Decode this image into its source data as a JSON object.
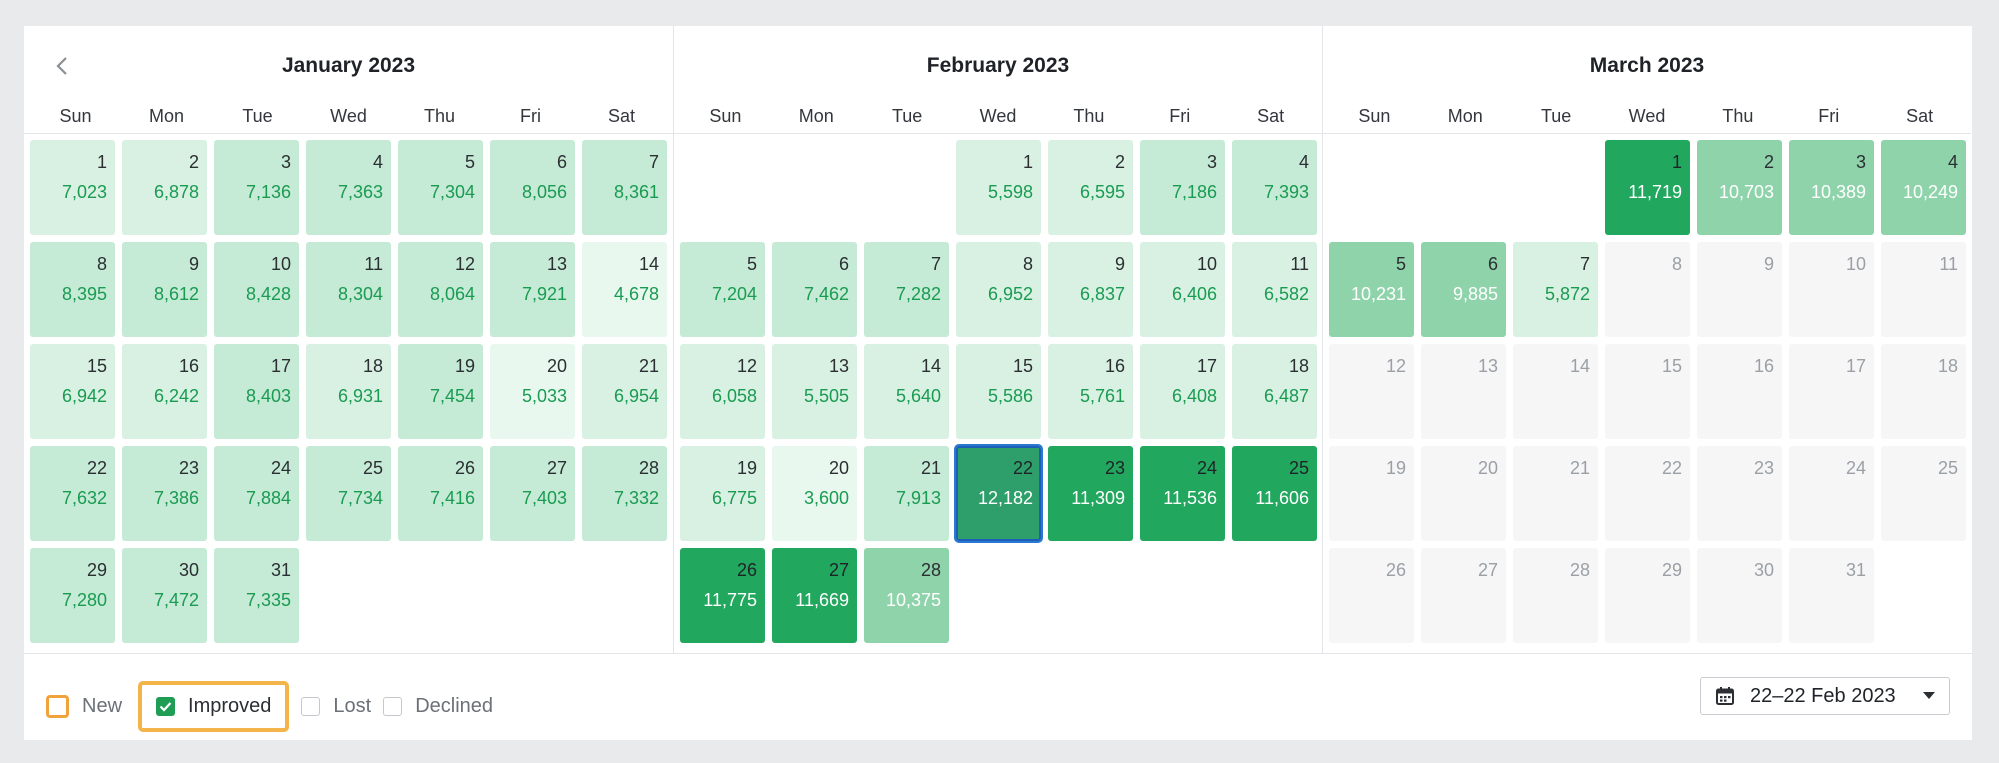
{
  "weekdays": [
    "Sun",
    "Mon",
    "Tue",
    "Wed",
    "Thu",
    "Fri",
    "Sat"
  ],
  "months": [
    {
      "title": "January 2023",
      "cells": [
        {
          "d": "1",
          "v": "7,023",
          "l": 2
        },
        {
          "d": "2",
          "v": "6,878",
          "l": 2
        },
        {
          "d": "3",
          "v": "7,136",
          "l": 3
        },
        {
          "d": "4",
          "v": "7,363",
          "l": 3
        },
        {
          "d": "5",
          "v": "7,304",
          "l": 3
        },
        {
          "d": "6",
          "v": "8,056",
          "l": 3
        },
        {
          "d": "7",
          "v": "8,361",
          "l": 3
        },
        {
          "d": "8",
          "v": "8,395",
          "l": 3
        },
        {
          "d": "9",
          "v": "8,612",
          "l": 3
        },
        {
          "d": "10",
          "v": "8,428",
          "l": 3
        },
        {
          "d": "11",
          "v": "8,304",
          "l": 3
        },
        {
          "d": "12",
          "v": "8,064",
          "l": 3
        },
        {
          "d": "13",
          "v": "7,921",
          "l": 3
        },
        {
          "d": "14",
          "v": "4,678",
          "l": 1
        },
        {
          "d": "15",
          "v": "6,942",
          "l": 2
        },
        {
          "d": "16",
          "v": "6,242",
          "l": 2
        },
        {
          "d": "17",
          "v": "8,403",
          "l": 3
        },
        {
          "d": "18",
          "v": "6,931",
          "l": 2
        },
        {
          "d": "19",
          "v": "7,454",
          "l": 3
        },
        {
          "d": "20",
          "v": "5,033",
          "l": 1
        },
        {
          "d": "21",
          "v": "6,954",
          "l": 2
        },
        {
          "d": "22",
          "v": "7,632",
          "l": 3
        },
        {
          "d": "23",
          "v": "7,386",
          "l": 3
        },
        {
          "d": "24",
          "v": "7,884",
          "l": 3
        },
        {
          "d": "25",
          "v": "7,734",
          "l": 3
        },
        {
          "d": "26",
          "v": "7,416",
          "l": 3
        },
        {
          "d": "27",
          "v": "7,403",
          "l": 3
        },
        {
          "d": "28",
          "v": "7,332",
          "l": 3
        },
        {
          "d": "29",
          "v": "7,280",
          "l": 3
        },
        {
          "d": "30",
          "v": "7,472",
          "l": 3
        },
        {
          "d": "31",
          "v": "7,335",
          "l": 3
        },
        {
          "d": "",
          "v": "",
          "l": -1
        },
        {
          "d": "",
          "v": "",
          "l": -1
        },
        {
          "d": "",
          "v": "",
          "l": -1
        },
        {
          "d": "",
          "v": "",
          "l": -1
        }
      ]
    },
    {
      "title": "February 2023",
      "cells": [
        {
          "d": "",
          "v": "",
          "l": -1
        },
        {
          "d": "",
          "v": "",
          "l": -1
        },
        {
          "d": "",
          "v": "",
          "l": -1
        },
        {
          "d": "1",
          "v": "5,598",
          "l": 2
        },
        {
          "d": "2",
          "v": "6,595",
          "l": 2
        },
        {
          "d": "3",
          "v": "7,186",
          "l": 3
        },
        {
          "d": "4",
          "v": "7,393",
          "l": 3
        },
        {
          "d": "5",
          "v": "7,204",
          "l": 3
        },
        {
          "d": "6",
          "v": "7,462",
          "l": 3
        },
        {
          "d": "7",
          "v": "7,282",
          "l": 3
        },
        {
          "d": "8",
          "v": "6,952",
          "l": 2
        },
        {
          "d": "9",
          "v": "6,837",
          "l": 2
        },
        {
          "d": "10",
          "v": "6,406",
          "l": 2
        },
        {
          "d": "11",
          "v": "6,582",
          "l": 2
        },
        {
          "d": "12",
          "v": "6,058",
          "l": 2
        },
        {
          "d": "13",
          "v": "5,505",
          "l": 2
        },
        {
          "d": "14",
          "v": "5,640",
          "l": 2
        },
        {
          "d": "15",
          "v": "5,586",
          "l": 2
        },
        {
          "d": "16",
          "v": "5,761",
          "l": 2
        },
        {
          "d": "17",
          "v": "6,408",
          "l": 2
        },
        {
          "d": "18",
          "v": "6,487",
          "l": 2
        },
        {
          "d": "19",
          "v": "6,775",
          "l": 2
        },
        {
          "d": "20",
          "v": "3,600",
          "l": 1
        },
        {
          "d": "21",
          "v": "7,913",
          "l": 3
        },
        {
          "d": "22",
          "v": "12,182",
          "l": 5,
          "sel": true
        },
        {
          "d": "23",
          "v": "11,309",
          "l": 5
        },
        {
          "d": "24",
          "v": "11,536",
          "l": 5
        },
        {
          "d": "25",
          "v": "11,606",
          "l": 5
        },
        {
          "d": "26",
          "v": "11,775",
          "l": 5
        },
        {
          "d": "27",
          "v": "11,669",
          "l": 5
        },
        {
          "d": "28",
          "v": "10,375",
          "l": 4
        },
        {
          "d": "",
          "v": "",
          "l": -1
        },
        {
          "d": "",
          "v": "",
          "l": -1
        },
        {
          "d": "",
          "v": "",
          "l": -1
        },
        {
          "d": "",
          "v": "",
          "l": -1
        }
      ]
    },
    {
      "title": "March 2023",
      "cells": [
        {
          "d": "",
          "v": "",
          "l": -1
        },
        {
          "d": "",
          "v": "",
          "l": -1
        },
        {
          "d": "",
          "v": "",
          "l": -1
        },
        {
          "d": "1",
          "v": "11,719",
          "l": 5
        },
        {
          "d": "2",
          "v": "10,703",
          "l": 4
        },
        {
          "d": "3",
          "v": "10,389",
          "l": 4
        },
        {
          "d": "4",
          "v": "10,249",
          "l": 4
        },
        {
          "d": "5",
          "v": "10,231",
          "l": 4
        },
        {
          "d": "6",
          "v": "9,885",
          "l": 4
        },
        {
          "d": "7",
          "v": "5,872",
          "l": 2
        },
        {
          "d": "8",
          "v": "",
          "l": 0
        },
        {
          "d": "9",
          "v": "",
          "l": 0
        },
        {
          "d": "10",
          "v": "",
          "l": 0
        },
        {
          "d": "11",
          "v": "",
          "l": 0
        },
        {
          "d": "12",
          "v": "",
          "l": 0
        },
        {
          "d": "13",
          "v": "",
          "l": 0
        },
        {
          "d": "14",
          "v": "",
          "l": 0
        },
        {
          "d": "15",
          "v": "",
          "l": 0
        },
        {
          "d": "16",
          "v": "",
          "l": 0
        },
        {
          "d": "17",
          "v": "",
          "l": 0
        },
        {
          "d": "18",
          "v": "",
          "l": 0
        },
        {
          "d": "19",
          "v": "",
          "l": 0
        },
        {
          "d": "20",
          "v": "",
          "l": 0
        },
        {
          "d": "21",
          "v": "",
          "l": 0
        },
        {
          "d": "22",
          "v": "",
          "l": 0
        },
        {
          "d": "23",
          "v": "",
          "l": 0
        },
        {
          "d": "24",
          "v": "",
          "l": 0
        },
        {
          "d": "25",
          "v": "",
          "l": 0
        },
        {
          "d": "26",
          "v": "",
          "l": 0
        },
        {
          "d": "27",
          "v": "",
          "l": 0
        },
        {
          "d": "28",
          "v": "",
          "l": 0
        },
        {
          "d": "29",
          "v": "",
          "l": 0
        },
        {
          "d": "30",
          "v": "",
          "l": 0
        },
        {
          "d": "31",
          "v": "",
          "l": 0
        },
        {
          "d": "",
          "v": "",
          "l": -1
        }
      ]
    }
  ],
  "legend": {
    "new": "New",
    "improved": "Improved",
    "lost": "Lost",
    "declined": "Declined"
  },
  "date_range": "22–22 Feb 2023",
  "colors": {
    "accent": "#22a85e",
    "highlight": "#f3b54a",
    "selection": "#2a78d2"
  }
}
